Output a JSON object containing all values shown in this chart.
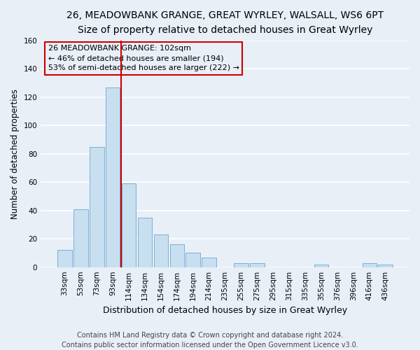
{
  "title1": "26, MEADOWBANK GRANGE, GREAT WYRLEY, WALSALL, WS6 6PT",
  "title2": "Size of property relative to detached houses in Great Wyrley",
  "xlabel": "Distribution of detached houses by size in Great Wyrley",
  "ylabel": "Number of detached properties",
  "bar_labels": [
    "33sqm",
    "53sqm",
    "73sqm",
    "93sqm",
    "114sqm",
    "134sqm",
    "154sqm",
    "174sqm",
    "194sqm",
    "214sqm",
    "235sqm",
    "255sqm",
    "275sqm",
    "295sqm",
    "315sqm",
    "335sqm",
    "355sqm",
    "376sqm",
    "396sqm",
    "416sqm",
    "436sqm"
  ],
  "bar_values": [
    12,
    41,
    85,
    127,
    59,
    35,
    23,
    16,
    10,
    7,
    0,
    3,
    3,
    0,
    0,
    0,
    2,
    0,
    0,
    3,
    2
  ],
  "bar_color": "#c8dff0",
  "bar_edge_color": "#7ab0d4",
  "ylim": [
    0,
    160
  ],
  "yticks": [
    0,
    20,
    40,
    60,
    80,
    100,
    120,
    140,
    160
  ],
  "vline_x": 3.5,
  "vline_color": "#cc0000",
  "annotation_title": "26 MEADOWBANK GRANGE: 102sqm",
  "annotation_line1": "← 46% of detached houses are smaller (194)",
  "annotation_line2": "53% of semi-detached houses are larger (222) →",
  "footer_line1": "Contains HM Land Registry data © Crown copyright and database right 2024.",
  "footer_line2": "Contains public sector information licensed under the Open Government Licence v3.0.",
  "bg_color": "#e8eff7",
  "grid_color": "#ffffff",
  "title1_fontsize": 10,
  "title2_fontsize": 9.5,
  "xlabel_fontsize": 9,
  "ylabel_fontsize": 8.5,
  "tick_fontsize": 7.5,
  "annotation_fontsize": 8,
  "footer_fontsize": 7
}
